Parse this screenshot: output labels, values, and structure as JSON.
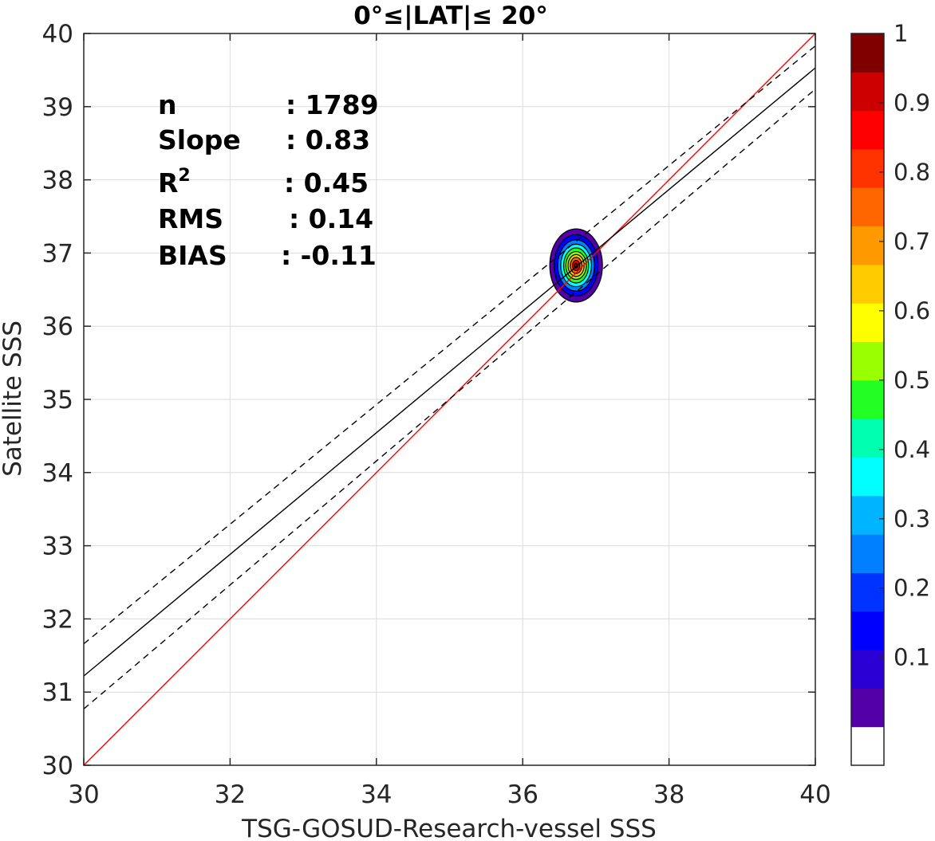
{
  "chart_data": {
    "type": "scatter",
    "title": "0°≤|LAT|≤ 20°",
    "xlabel": "TSG-GOSUD-Research-vessel SSS",
    "ylabel": "Satellite SSS",
    "xlim": [
      30,
      40
    ],
    "ylim": [
      30,
      40
    ],
    "xticks": [
      "30",
      "32",
      "34",
      "36",
      "38",
      "40"
    ],
    "yticks": [
      "30",
      "31",
      "32",
      "33",
      "34",
      "35",
      "36",
      "37",
      "38",
      "39",
      "40"
    ],
    "grid": true,
    "stats": [
      {
        "label": "n",
        "value": ": 1789"
      },
      {
        "label": "Slope",
        "value": ": 0.83"
      },
      {
        "label": "R",
        "sup": "2",
        "value": ": 0.45"
      },
      {
        "label": "RMS",
        "value": ": 0.14"
      },
      {
        "label": "BIAS",
        "value": ": -0.11"
      }
    ],
    "lines": [
      {
        "id": "one-to-one",
        "color": "#ff0000",
        "dash": "",
        "x": [
          30,
          40
        ],
        "y": [
          30,
          40
        ]
      },
      {
        "id": "regression",
        "color": "#000000",
        "dash": "",
        "x": [
          30,
          40
        ],
        "y": [
          31.22,
          39.53
        ]
      },
      {
        "id": "upper-bound",
        "color": "#000000",
        "dash": "8 6",
        "x": [
          30,
          40
        ],
        "y": [
          31.66,
          39.83
        ]
      },
      {
        "id": "lower-bound",
        "color": "#000000",
        "dash": "8 6",
        "x": [
          30,
          40
        ],
        "y": [
          30.77,
          39.24
        ]
      }
    ],
    "density": {
      "center": [
        36.73,
        36.83
      ],
      "levels": [
        {
          "level": 0.05,
          "rx": 0.36,
          "ry": 0.5
        },
        {
          "level": 0.15,
          "rx": 0.3,
          "ry": 0.42
        },
        {
          "level": 0.25,
          "rx": 0.25,
          "ry": 0.35
        },
        {
          "level": 0.35,
          "rx": 0.21,
          "ry": 0.29
        },
        {
          "level": 0.45,
          "rx": 0.17,
          "ry": 0.24
        },
        {
          "level": 0.55,
          "rx": 0.14,
          "ry": 0.19
        },
        {
          "level": 0.65,
          "rx": 0.11,
          "ry": 0.15
        },
        {
          "level": 0.75,
          "rx": 0.08,
          "ry": 0.11
        },
        {
          "level": 0.85,
          "rx": 0.05,
          "ry": 0.07
        },
        {
          "level": 0.95,
          "rx": 0.025,
          "ry": 0.035
        }
      ]
    },
    "colorbar": {
      "colors": [
        "#ffffff",
        "#5400a8",
        "#2a00d5",
        "#0000ff",
        "#0033ff",
        "#0080ff",
        "#00b4ff",
        "#00ffff",
        "#00ffb0",
        "#22ff22",
        "#99ff00",
        "#ffff00",
        "#ffcc00",
        "#ff9900",
        "#ff6600",
        "#ff3300",
        "#ff0000",
        "#cc0000",
        "#800000"
      ],
      "ticks": [
        {
          "value": 0.1,
          "label": "0.1"
        },
        {
          "value": 0.2,
          "label": "0.2"
        },
        {
          "value": 0.3,
          "label": "0.3"
        },
        {
          "value": 0.4,
          "label": "0.4"
        },
        {
          "value": 0.5,
          "label": "0.5"
        },
        {
          "value": 0.6,
          "label": "0.6"
        },
        {
          "value": 0.7,
          "label": "0.7"
        },
        {
          "value": 0.8,
          "label": "0.8"
        },
        {
          "value": 0.9,
          "label": "0.9"
        },
        {
          "value": 1.0,
          "label": "1"
        }
      ]
    }
  }
}
